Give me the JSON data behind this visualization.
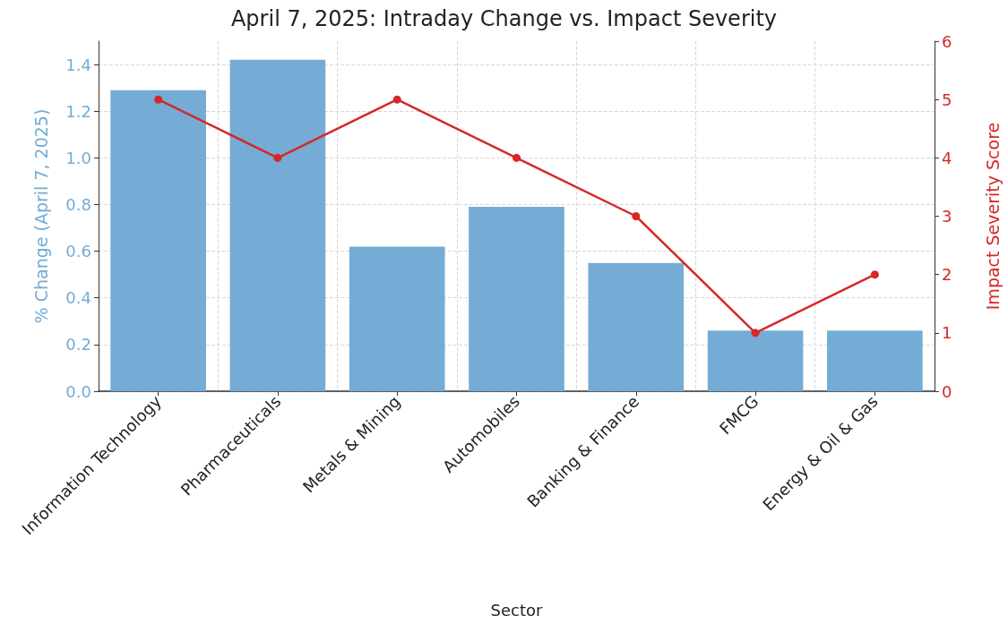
{
  "chart_data": {
    "type": "bar",
    "title": "April 7, 2025: Intraday Change vs. Impact Severity",
    "xlabel": "Sector",
    "ylabel": "% Change (April 7, 2025)",
    "y2label": "Impact Severity Score",
    "categories": [
      "Information Technology",
      "Pharmaceuticals",
      "Metals & Mining",
      "Automobiles",
      "Banking & Finance",
      "FMCG",
      "Energy & Oil & Gas"
    ],
    "series": [
      {
        "color": "#74acd5",
        "values": [
          1.29,
          1.42,
          0.62,
          0.79,
          0.55,
          0.26,
          0.26
        ]
      },
      {
        "type": "line",
        "axis": "y2",
        "color": "#d62728",
        "values": [
          5,
          4,
          5,
          4,
          3,
          1,
          2
        ]
      }
    ],
    "ylim": [
      0,
      1.5
    ],
    "yticks": [
      {
        "value": 0,
        "label": "0.0"
      },
      {
        "value": 0.2,
        "label": "0.2"
      },
      {
        "value": 0.4,
        "label": "0.4"
      },
      {
        "value": 0.6,
        "label": "0.6"
      },
      {
        "value": 0.8,
        "label": "0.8"
      },
      {
        "value": 1,
        "label": "1.0"
      },
      {
        "value": 1.2,
        "label": "1.2"
      },
      {
        "value": 1.4,
        "label": "1.4"
      }
    ],
    "y2lim": [
      0,
      6
    ],
    "y2ticks": [
      0,
      1,
      2,
      3,
      4,
      5,
      6
    ],
    "grid": true,
    "marker": "circle",
    "line_style": "solid"
  }
}
